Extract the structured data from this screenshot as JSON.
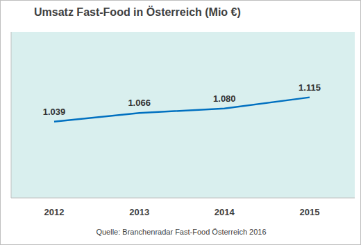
{
  "chart_data": {
    "type": "line",
    "title": "Umsatz Fast-Food in Österreich (Mio €)",
    "categories": [
      "2012",
      "2013",
      "2014",
      "2015"
    ],
    "values": [
      1039,
      1066,
      1080,
      1115
    ],
    "value_labels": [
      "1.039",
      "1.066",
      "1.080",
      "1.115"
    ],
    "color": "#0070c0",
    "ylim": [
      800,
      1320
    ],
    "data_labels": true,
    "tick_labels": "x",
    "grid": false,
    "annotations": [
      "Quelle: Branchenradar Fast-Food Österreich 2016"
    ]
  }
}
